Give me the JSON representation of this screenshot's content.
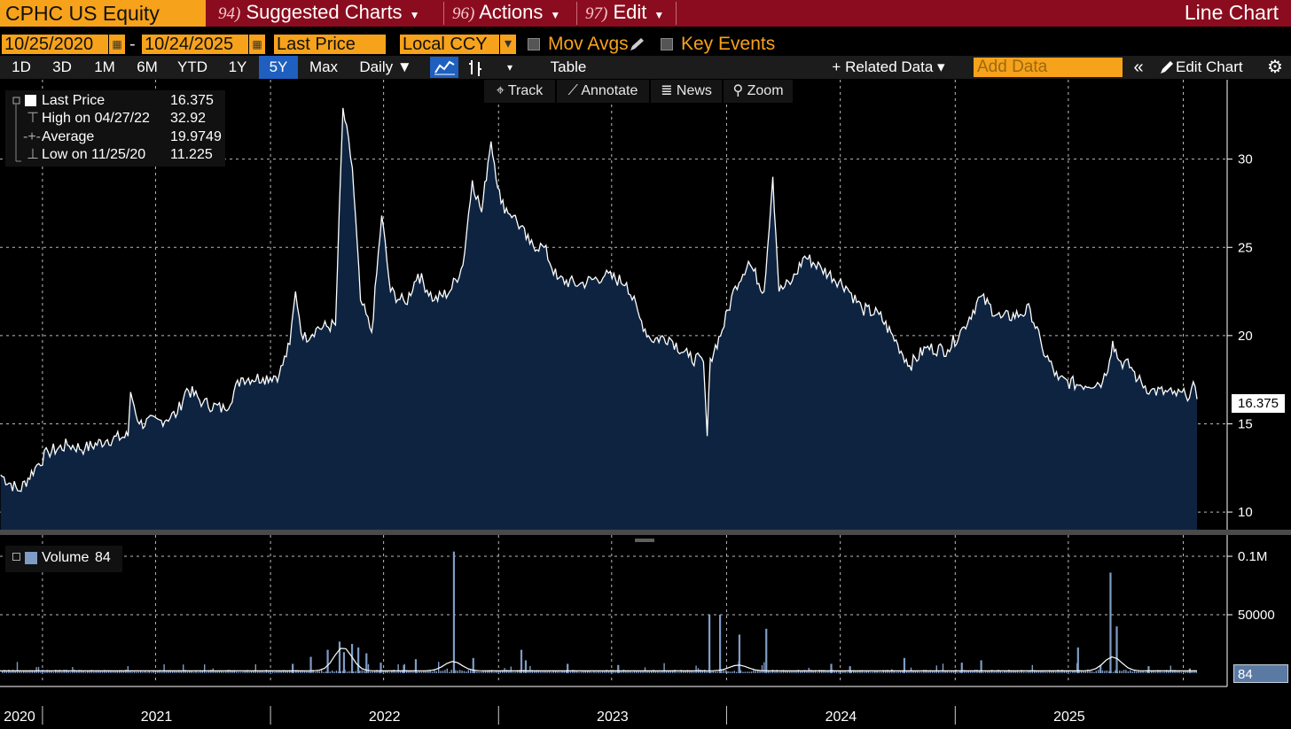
{
  "topbar": {
    "ticker": "CPHC US Equity",
    "menus": [
      {
        "num": "94)",
        "label": "Suggested Charts"
      },
      {
        "num": "96)",
        "label": "Actions"
      },
      {
        "num": "97)",
        "label": "Edit"
      }
    ],
    "chart_type": "Line Chart"
  },
  "controls": {
    "start_date": "10/25/2020",
    "dash": "-",
    "end_date": "10/24/2025",
    "field": "Last Price",
    "currency": "Local CCY",
    "mov_avgs": "Mov Avgs",
    "key_events": "Key Events",
    "calendar_glyph": "▦",
    "dropdown_glyph": "▾"
  },
  "periods": [
    "1D",
    "3D",
    "1M",
    "6M",
    "YTD",
    "1Y",
    "5Y",
    "Max"
  ],
  "selected_period": "5Y",
  "frequency": "Daily ▼",
  "table_label": "Table",
  "related_data": "+ Related Data ▾",
  "add_data_placeholder": "Add Data",
  "edit_chart": "Edit Chart",
  "tools": [
    "Track",
    "Annotate",
    "News",
    "Zoom"
  ],
  "legend": {
    "rows": [
      {
        "label": "Last Price",
        "value": "16.375"
      },
      {
        "label": "High on 04/27/22",
        "value": "32.92"
      },
      {
        "label": "Average",
        "value": "19.9749"
      },
      {
        "label": "Low on 11/25/20",
        "value": "11.225"
      }
    ]
  },
  "volume_legend": {
    "label": "Volume",
    "value": "84"
  },
  "last_price_tag": "16.375",
  "last_volume_tag": "84",
  "colors": {
    "accent": "#f7a21b",
    "topbar": "#8b0c1e",
    "area_fill": "#0d2340",
    "line": "#ffffff",
    "volume_bar": "#7f9cc6"
  },
  "chart_data": [
    {
      "type": "area",
      "name": "Last Price",
      "x_ticks": [
        "2020",
        "2021",
        "2022",
        "2023",
        "2024",
        "2025"
      ],
      "y_ticks": [
        "10",
        "15",
        "20",
        "25",
        "30"
      ],
      "ylim": [
        9,
        34.5
      ],
      "x_start": "2020-10-25",
      "x_end": "2025-10-24",
      "grid": true,
      "points": [
        [
          "2020-10-26",
          12.1
        ],
        [
          "2020-11-25",
          11.2
        ],
        [
          "2020-12-20",
          12.5
        ],
        [
          "2021-01-10",
          13.4
        ],
        [
          "2021-02-10",
          13.8
        ],
        [
          "2021-03-10",
          13.6
        ],
        [
          "2021-04-15",
          14.1
        ],
        [
          "2021-05-18",
          14.3
        ],
        [
          "2021-05-22",
          16.8
        ],
        [
          "2021-06-05",
          15.0
        ],
        [
          "2021-07-10",
          15.2
        ],
        [
          "2021-08-05",
          15.6
        ],
        [
          "2021-08-20",
          17.0
        ],
        [
          "2021-09-15",
          16.2
        ],
        [
          "2021-10-20",
          15.8
        ],
        [
          "2021-11-15",
          17.6
        ],
        [
          "2021-12-20",
          17.6
        ],
        [
          "2022-01-15",
          17.8
        ],
        [
          "2022-02-01",
          19.5
        ],
        [
          "2022-02-10",
          22.5
        ],
        [
          "2022-02-22",
          19.8
        ],
        [
          "2022-03-15",
          20.4
        ],
        [
          "2022-04-15",
          20.6
        ],
        [
          "2022-04-27",
          32.9
        ],
        [
          "2022-05-12",
          29.5
        ],
        [
          "2022-05-25",
          22.0
        ],
        [
          "2022-06-12",
          20.2
        ],
        [
          "2022-06-28",
          26.8
        ],
        [
          "2022-07-12",
          22.5
        ],
        [
          "2022-08-05",
          21.8
        ],
        [
          "2022-08-25",
          23.5
        ],
        [
          "2022-09-20",
          22.0
        ],
        [
          "2022-10-15",
          22.5
        ],
        [
          "2022-11-05",
          24.0
        ],
        [
          "2022-11-20",
          28.8
        ],
        [
          "2022-12-05",
          27.0
        ],
        [
          "2022-12-15",
          29.8
        ],
        [
          "2022-12-20",
          31.0
        ],
        [
          "2023-01-05",
          27.5
        ],
        [
          "2023-01-25",
          26.8
        ],
        [
          "2023-02-20",
          25.2
        ],
        [
          "2023-03-15",
          25.0
        ],
        [
          "2023-04-05",
          23.2
        ],
        [
          "2023-05-10",
          22.9
        ],
        [
          "2023-06-20",
          23.4
        ],
        [
          "2023-07-25",
          23.0
        ],
        [
          "2023-08-15",
          21.0
        ],
        [
          "2023-09-01",
          19.8
        ],
        [
          "2023-10-01",
          19.9
        ],
        [
          "2023-11-01",
          18.8
        ],
        [
          "2023-11-25",
          18.5
        ],
        [
          "2023-12-01",
          14.3
        ],
        [
          "2023-12-06",
          18.7
        ],
        [
          "2023-12-25",
          20.3
        ],
        [
          "2024-01-15",
          22.8
        ],
        [
          "2024-02-05",
          24.2
        ],
        [
          "2024-03-01",
          22.5
        ],
        [
          "2024-03-15",
          29.0
        ],
        [
          "2024-03-25",
          22.5
        ],
        [
          "2024-04-15",
          23.1
        ],
        [
          "2024-05-05",
          24.5
        ],
        [
          "2024-06-01",
          23.8
        ],
        [
          "2024-07-10",
          22.8
        ],
        [
          "2024-08-05",
          21.5
        ],
        [
          "2024-09-01",
          21.2
        ],
        [
          "2024-10-01",
          19.5
        ],
        [
          "2024-10-20",
          18.3
        ],
        [
          "2024-11-15",
          19.3
        ],
        [
          "2024-12-20",
          19.2
        ],
        [
          "2025-01-15",
          20.5
        ],
        [
          "2025-02-10",
          22.2
        ],
        [
          "2025-03-15",
          21.0
        ],
        [
          "2025-04-15",
          21.2
        ],
        [
          "2025-05-01",
          21.5
        ],
        [
          "2025-05-20",
          19.3
        ],
        [
          "2025-06-15",
          17.5
        ],
        [
          "2025-07-20",
          17.2
        ],
        [
          "2025-08-25",
          17.4
        ],
        [
          "2025-09-05",
          18.6
        ],
        [
          "2025-09-10",
          19.7
        ],
        [
          "2025-09-20",
          18.6
        ],
        [
          "2025-10-10",
          18.2
        ],
        [
          "2025-10-20",
          17.5
        ],
        [
          "2025-11-10",
          16.9
        ],
        [
          "2025-12-15",
          16.7
        ],
        [
          "2026-01-05",
          16.6
        ],
        [
          "2026-01-20",
          17.1
        ],
        [
          "2026-01-23",
          16.4
        ]
      ]
    },
    {
      "type": "bar",
      "name": "Volume",
      "y_ticks": [
        "0.1M",
        "50000"
      ],
      "ylim": [
        0,
        100000
      ],
      "baseline": 2000,
      "spikes": [
        [
          "2022-02-04",
          8000
        ],
        [
          "2022-03-05",
          14000
        ],
        [
          "2022-04-01",
          20000
        ],
        [
          "2022-04-20",
          27000
        ],
        [
          "2022-04-27",
          18000
        ],
        [
          "2022-05-10",
          25000
        ],
        [
          "2022-05-20",
          22000
        ],
        [
          "2022-06-02",
          17000
        ],
        [
          "2022-06-25",
          9000
        ],
        [
          "2022-08-01",
          7000
        ],
        [
          "2022-08-20",
          12000
        ],
        [
          "2022-10-20",
          104000
        ],
        [
          "2022-11-20",
          13000
        ],
        [
          "2023-02-05",
          20000
        ],
        [
          "2023-02-12",
          11000
        ],
        [
          "2023-04-20",
          8000
        ],
        [
          "2023-07-10",
          7000
        ],
        [
          "2023-12-03",
          50000
        ],
        [
          "2023-12-20",
          50000
        ],
        [
          "2024-01-20",
          33000
        ],
        [
          "2024-03-03",
          38000
        ],
        [
          "2024-06-15",
          8000
        ],
        [
          "2024-07-15",
          6000
        ],
        [
          "2024-10-10",
          13000
        ],
        [
          "2025-01-10",
          9000
        ],
        [
          "2025-02-10",
          11000
        ],
        [
          "2025-07-15",
          22000
        ],
        [
          "2025-08-20",
          7000
        ],
        [
          "2025-09-05",
          86000
        ],
        [
          "2025-09-15",
          40000
        ],
        [
          "2025-11-05",
          6000
        ],
        [
          "2026-01-10",
          4000
        ]
      ],
      "avg_bumps": [
        [
          "2022-04-27",
          20000
        ],
        [
          "2022-10-20",
          8000
        ],
        [
          "2024-01-20",
          5000
        ],
        [
          "2025-09-10",
          12000
        ]
      ]
    }
  ]
}
